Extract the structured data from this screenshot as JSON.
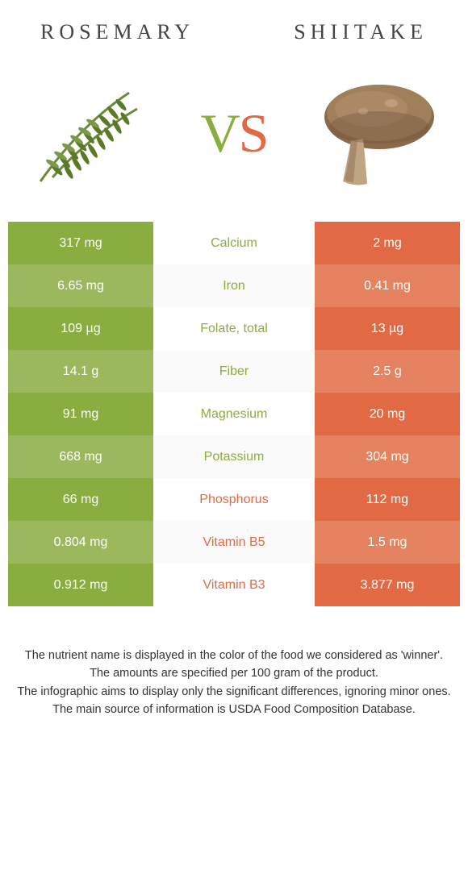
{
  "titles": {
    "left": "ROSEMARY",
    "right": "SHIITAKE"
  },
  "vs": {
    "v": "V",
    "s": "S"
  },
  "colors": {
    "left_winner": "#8aad3f",
    "right_winner": "#e16a45",
    "left_odd": "#8aad3f",
    "left_even": "#9bb85c",
    "right_odd": "#e16a45",
    "right_even": "#e5825f"
  },
  "rows": [
    {
      "left": "317 mg",
      "label": "Calcium",
      "right": "2 mg",
      "winner": "left"
    },
    {
      "left": "6.65 mg",
      "label": "Iron",
      "right": "0.41 mg",
      "winner": "left"
    },
    {
      "left": "109 µg",
      "label": "Folate, total",
      "right": "13 µg",
      "winner": "left"
    },
    {
      "left": "14.1 g",
      "label": "Fiber",
      "right": "2.5 g",
      "winner": "left"
    },
    {
      "left": "91 mg",
      "label": "Magnesium",
      "right": "20 mg",
      "winner": "left"
    },
    {
      "left": "668 mg",
      "label": "Potassium",
      "right": "304 mg",
      "winner": "left"
    },
    {
      "left": "66 mg",
      "label": "Phosphorus",
      "right": "112 mg",
      "winner": "right"
    },
    {
      "left": "0.804 mg",
      "label": "Vitamin B5",
      "right": "1.5 mg",
      "winner": "right"
    },
    {
      "left": "0.912 mg",
      "label": "Vitamin B3",
      "right": "3.877 mg",
      "winner": "right"
    }
  ],
  "footer": {
    "line1": "The nutrient name is displayed in the color of the food we considered as 'winner'.",
    "line2": "The amounts are specified per 100 gram of the product.",
    "line3": "The infographic aims to display only the significant differences, ignoring minor ones.",
    "line4": "The main source of information is USDA Food Composition Database."
  }
}
